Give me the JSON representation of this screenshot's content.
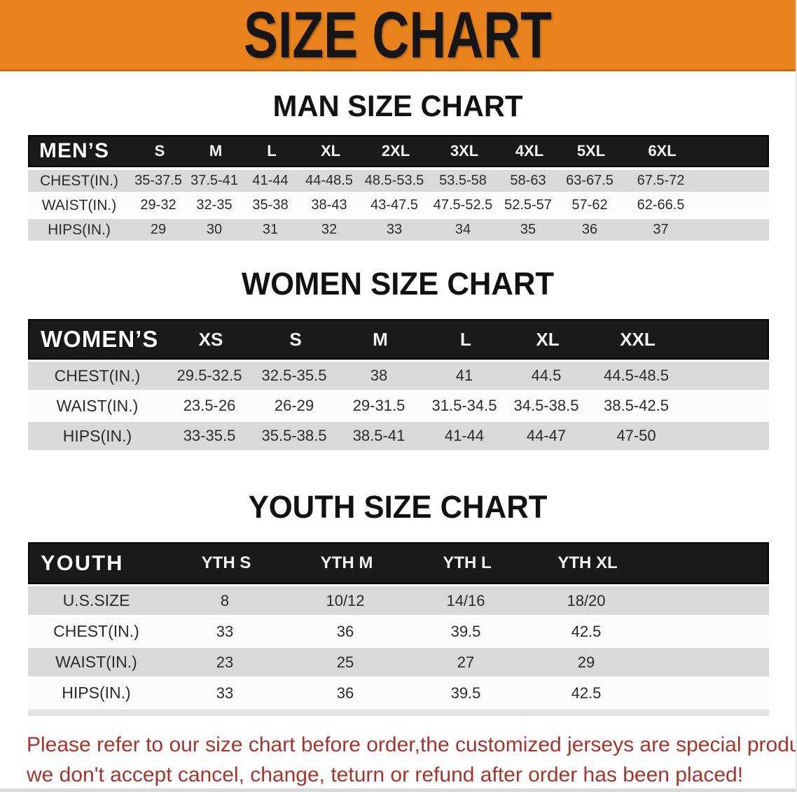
{
  "banner": {
    "title": "SIZE CHART",
    "bg_color": "#E8821C",
    "text_color": "#161616"
  },
  "sections": {
    "men": {
      "heading": "MAN SIZE CHART",
      "table": {
        "header_label": "MEN’S",
        "cols": [
          "S",
          "M",
          "L",
          "XL",
          "2XL",
          "3XL",
          "4XL",
          "5XL",
          "6XL"
        ],
        "rows": [
          {
            "label": "CHEST(IN.)",
            "values": [
              "35-37.5",
              "37.5-41",
              "41-44",
              "44-48.5",
              "48.5-53.5",
              "53.5-58",
              "58-63",
              "63-67.5",
              "67.5-72"
            ]
          },
          {
            "label": "WAIST(IN.)",
            "values": [
              "29-32",
              "32-35",
              "35-38",
              "38-43",
              "43-47.5",
              "47.5-52.5",
              "52.5-57",
              "57-62",
              "62-66.5"
            ]
          },
          {
            "label": "HIPS(IN.)",
            "values": [
              "29",
              "30",
              "31",
              "32",
              "33",
              "34",
              "35",
              "36",
              "37"
            ]
          }
        ]
      }
    },
    "women": {
      "heading": "WOMEN SIZE CHART",
      "table": {
        "header_label": "WOMEN’S",
        "cols": [
          "XS",
          "S",
          "M",
          "L",
          "XL",
          "XXL"
        ],
        "rows": [
          {
            "label": "CHEST(IN.)",
            "values": [
              "29.5-32.5",
              "32.5-35.5",
              "38",
              "41",
              "44.5",
              "44.5-48.5"
            ]
          },
          {
            "label": "WAIST(IN.)",
            "values": [
              "23.5-26",
              "26-29",
              "29-31.5",
              "31.5-34.5",
              "34.5-38.5",
              "38.5-42.5"
            ]
          },
          {
            "label": "HIPS(IN.)",
            "values": [
              "33-35.5",
              "35.5-38.5",
              "38.5-41",
              "41-44",
              "44-47",
              "47-50"
            ]
          }
        ]
      }
    },
    "youth": {
      "heading": "YOUTH SIZE CHART",
      "table": {
        "header_label": "YOUTH",
        "cols": [
          "YTH S",
          "YTH M",
          "YTH L",
          "YTH XL"
        ],
        "rows": [
          {
            "label": "U.S.SIZE",
            "values": [
              "8",
              "10/12",
              "14/16",
              "18/20"
            ]
          },
          {
            "label": "CHEST(IN.)",
            "values": [
              "33",
              "36",
              "39.5",
              "42.5"
            ]
          },
          {
            "label": "WAIST(IN.)",
            "values": [
              "23",
              "25",
              "27",
              "29"
            ]
          },
          {
            "label": "HIPS(IN.)",
            "values": [
              "33",
              "36",
              "39.5",
              "42.5"
            ]
          }
        ]
      }
    }
  },
  "disclaimer": {
    "line1": "Please refer to our size chart before order,the customized jerseys are special products,",
    "line2": "we don't accept cancel, change, teturn or refund after order has been placed!",
    "text_color": "#A8332A"
  },
  "colors": {
    "header_bar": "#1a1a1a",
    "row_gray": "#d9d9d9",
    "row_white": "#fcfcfc",
    "banner_orange": "#E8821C",
    "disclaimer_red": "#A8332A"
  }
}
